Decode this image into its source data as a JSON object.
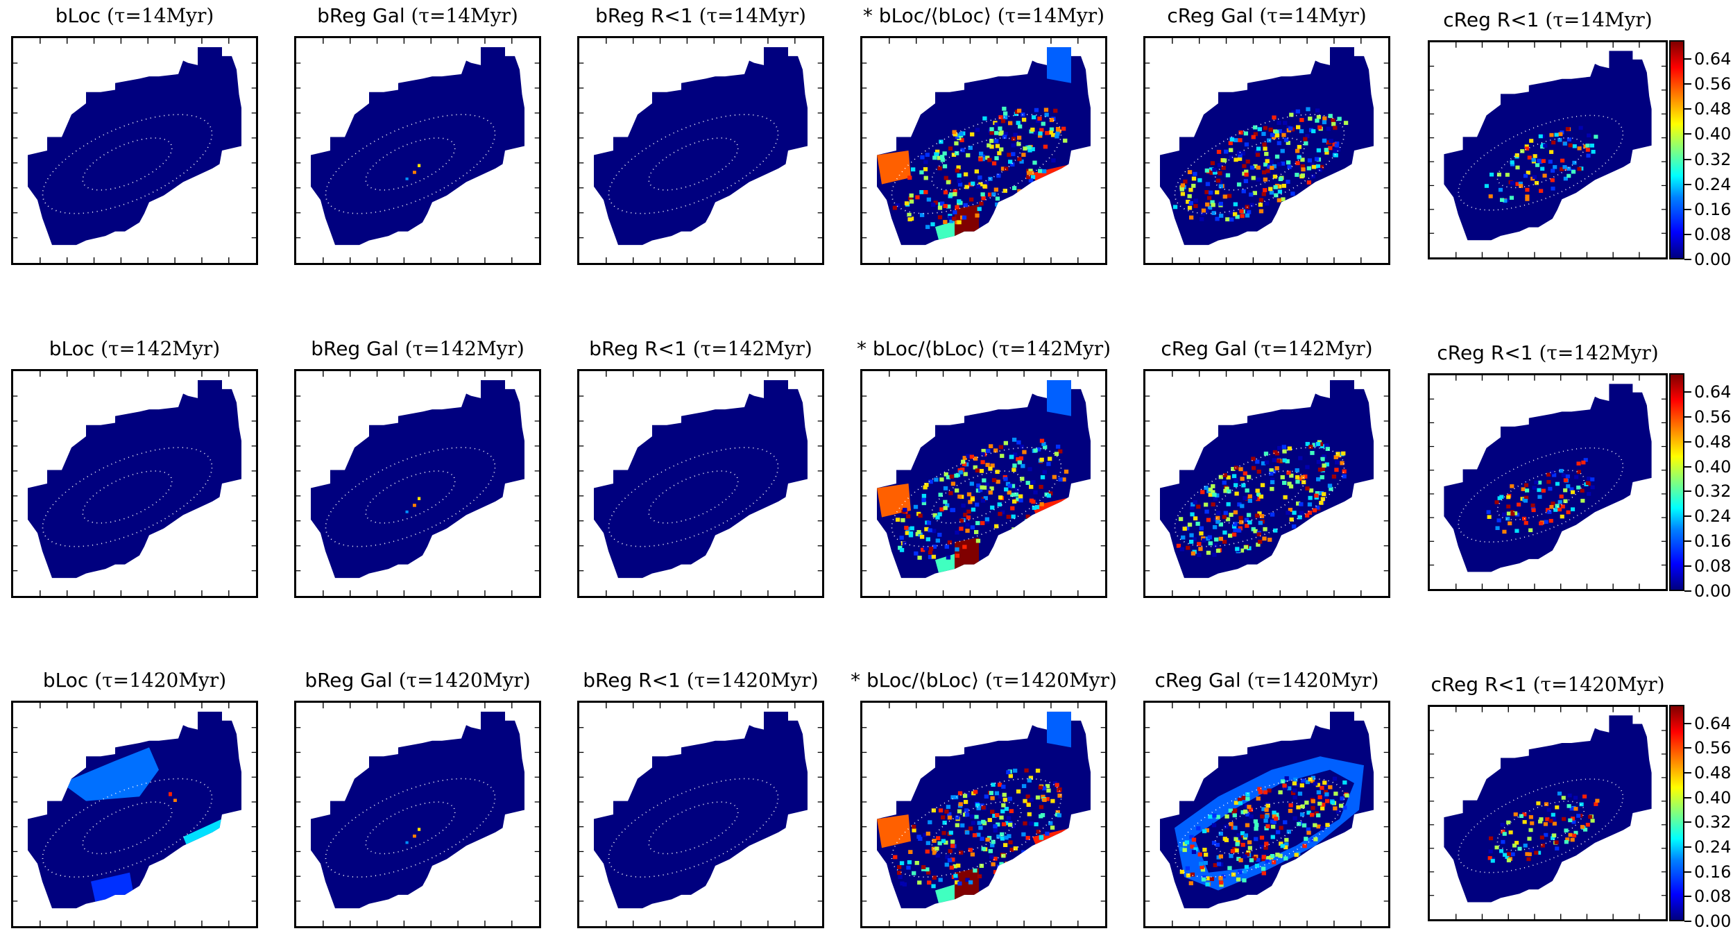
{
  "chart_data": {
    "type": "heatmap",
    "colorbar": {
      "ticks": [
        "0.64",
        "0.56",
        "0.48",
        "0.40",
        "0.32",
        "0.24",
        "0.16",
        "0.08",
        "0.00"
      ],
      "range": [
        0.0,
        0.7
      ],
      "colormap": "jet"
    },
    "rows": [
      {
        "tau_value": "14",
        "panels": [
          {
            "label": "bLoc",
            "math": "(τ=14Myr)",
            "pattern": "none"
          },
          {
            "label": "bReg Gal",
            "math": "(τ=14Myr)",
            "pattern": "sparse"
          },
          {
            "label": "bReg R<1",
            "math": "(τ=14Myr)",
            "pattern": "none"
          },
          {
            "label": "* bLoc/⟨bLoc⟩",
            "math": "(τ=14Myr)",
            "pattern": "regions"
          },
          {
            "label": "cReg Gal",
            "math": "(τ=14Myr)",
            "pattern": "dense"
          },
          {
            "label": "cReg R<1",
            "math": "(τ=14Myr)",
            "pattern": "medium"
          }
        ]
      },
      {
        "tau_value": "142",
        "panels": [
          {
            "label": "bLoc",
            "math": "(τ=142Myr)",
            "pattern": "none"
          },
          {
            "label": "bReg Gal",
            "math": "(τ=142Myr)",
            "pattern": "sparse"
          },
          {
            "label": "bReg R<1",
            "math": "(τ=142Myr)",
            "pattern": "none"
          },
          {
            "label": "* bLoc/⟨bLoc⟩",
            "math": "(τ=142Myr)",
            "pattern": "regions"
          },
          {
            "label": "cReg Gal",
            "math": "(τ=142Myr)",
            "pattern": "dense"
          },
          {
            "label": "cReg R<1",
            "math": "(τ=142Myr)",
            "pattern": "medium"
          }
        ]
      },
      {
        "tau_value": "1420",
        "panels": [
          {
            "label": "bLoc",
            "math": "(τ=1420Myr)",
            "pattern": "regions-blue"
          },
          {
            "label": "bReg Gal",
            "math": "(τ=1420Myr)",
            "pattern": "sparse"
          },
          {
            "label": "bReg R<1",
            "math": "(τ=1420Myr)",
            "pattern": "none"
          },
          {
            "label": "* bLoc/⟨bLoc⟩",
            "math": "(τ=1420Myr)",
            "pattern": "regions"
          },
          {
            "label": "cReg Gal",
            "math": "(τ=1420Myr)",
            "pattern": "dense-halo"
          },
          {
            "label": "cReg R<1",
            "math": "(τ=1420Myr)",
            "pattern": "medium"
          }
        ]
      }
    ]
  }
}
